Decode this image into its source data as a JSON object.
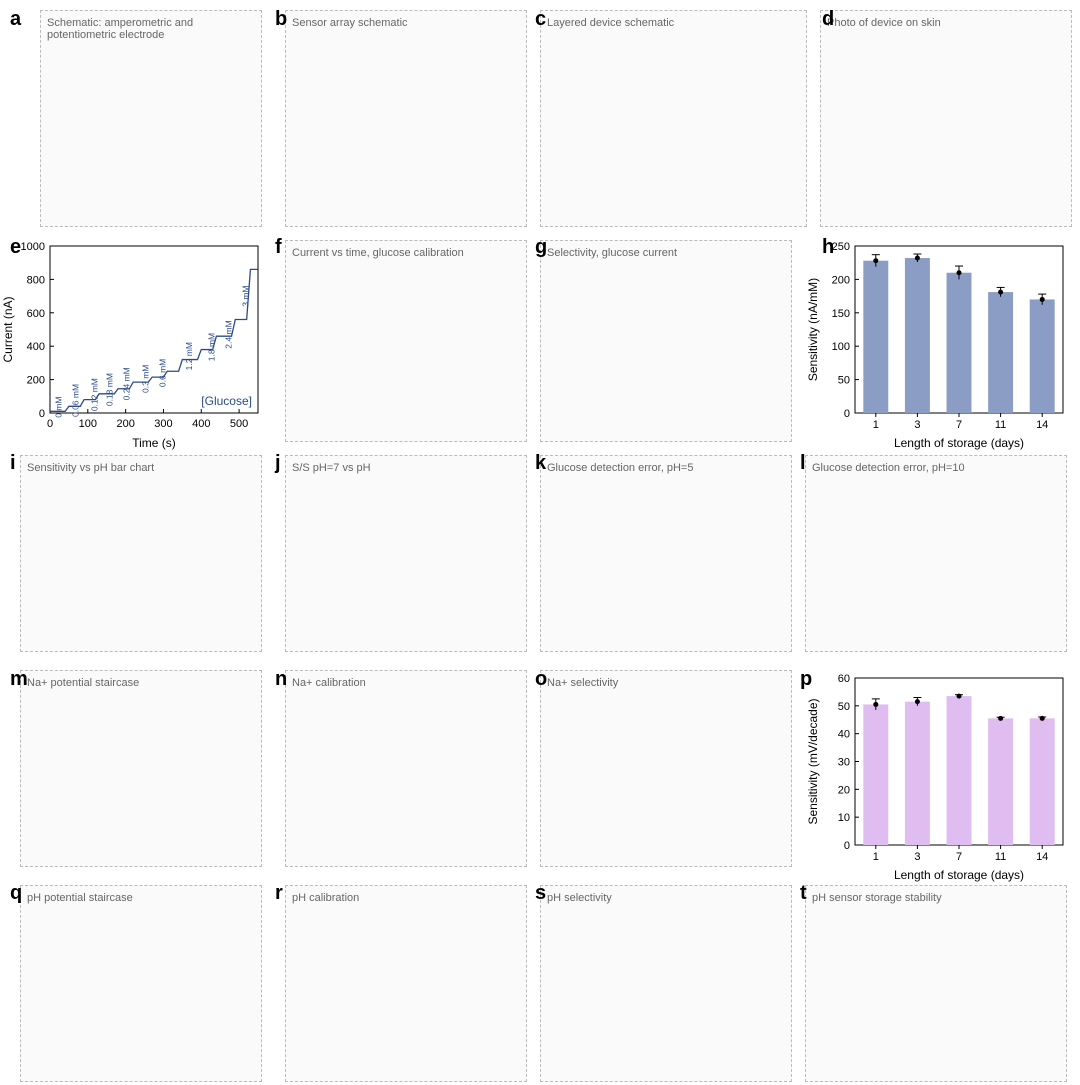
{
  "figure": {
    "panels": [
      {
        "label": "a",
        "placeholder": "Schematic: amperometric and potentiometric electrode"
      },
      {
        "label": "b",
        "placeholder": "Sensor array schematic"
      },
      {
        "label": "c",
        "placeholder": "Layered device schematic"
      },
      {
        "label": "d",
        "placeholder": "Photo of device on skin"
      },
      {
        "label": "e"
      },
      {
        "label": "f",
        "placeholder": "Current vs time, glucose calibration"
      },
      {
        "label": "g",
        "placeholder": "Selectivity, glucose current"
      },
      {
        "label": "h"
      },
      {
        "label": "i",
        "placeholder": "Sensitivity vs pH bar chart"
      },
      {
        "label": "j",
        "placeholder": "S/S pH=7 vs pH"
      },
      {
        "label": "k",
        "placeholder": "Glucose detection error, pH=5"
      },
      {
        "label": "l",
        "placeholder": "Glucose detection error, pH=10"
      },
      {
        "label": "m",
        "placeholder": "Na+ potential staircase"
      },
      {
        "label": "n",
        "placeholder": "Na+ calibration"
      },
      {
        "label": "o",
        "placeholder": "Na+ selectivity"
      },
      {
        "label": "p"
      },
      {
        "label": "q",
        "placeholder": "pH potential staircase"
      },
      {
        "label": "r",
        "placeholder": "pH calibration"
      },
      {
        "label": "s",
        "placeholder": "pH selectivity"
      },
      {
        "label": "t",
        "placeholder": "pH sensor storage stability"
      }
    ]
  },
  "chart_data": [
    {
      "id": "e",
      "type": "line",
      "title": "",
      "xlabel": "Time (s)",
      "ylabel": "Current (nA)",
      "xlim": [
        0,
        550
      ],
      "ylim": [
        0,
        1000
      ],
      "xticks": [
        0,
        100,
        200,
        300,
        400,
        500
      ],
      "yticks": [
        0,
        200,
        400,
        600,
        800,
        1000
      ],
      "legend_text": "[Glucose]",
      "series": [
        {
          "name": "glucose response",
          "x": [
            0,
            20,
            40,
            50,
            60,
            80,
            90,
            100,
            120,
            130,
            150,
            170,
            180,
            190,
            210,
            220,
            240,
            260,
            270,
            280,
            300,
            310,
            320,
            340,
            350,
            370,
            390,
            400,
            410,
            430,
            440,
            460,
            480,
            490,
            500,
            520,
            530,
            550
          ],
          "y": [
            10,
            10,
            10,
            40,
            40,
            40,
            80,
            80,
            80,
            115,
            115,
            115,
            145,
            145,
            145,
            185,
            185,
            185,
            215,
            215,
            215,
            250,
            250,
            250,
            320,
            320,
            320,
            380,
            380,
            380,
            460,
            460,
            460,
            560,
            560,
            560,
            860,
            860
          ]
        }
      ],
      "annotations": [
        {
          "text": "0 mM",
          "x": 30,
          "y": 35
        },
        {
          "text": "0.06 mM",
          "x": 75,
          "y": 75
        },
        {
          "text": "0.12 mM",
          "x": 125,
          "y": 110
        },
        {
          "text": "0.18 mM",
          "x": 165,
          "y": 140
        },
        {
          "text": "0.24 mM",
          "x": 210,
          "y": 175
        },
        {
          "text": "0.3 mM",
          "x": 260,
          "y": 205
        },
        {
          "text": "0.6 mM",
          "x": 305,
          "y": 240
        },
        {
          "text": "1.2 mM",
          "x": 375,
          "y": 340
        },
        {
          "text": "1.8 mM",
          "x": 435,
          "y": 395
        },
        {
          "text": "2.4 mM",
          "x": 480,
          "y": 470
        },
        {
          "text": "3 mM",
          "x": 525,
          "y": 700
        }
      ]
    },
    {
      "id": "h",
      "type": "bar",
      "xlabel": "Length of storage (days)",
      "ylabel": "Sensitivity (nA/mM)",
      "categories": [
        "1",
        "3",
        "7",
        "11",
        "14"
      ],
      "values": [
        228,
        232,
        210,
        181,
        170
      ],
      "errors": [
        9,
        6,
        10,
        7,
        8
      ],
      "ylim": [
        0,
        250
      ],
      "yticks": [
        0,
        50,
        100,
        150,
        200,
        250
      ],
      "color": "#8c9dc5"
    },
    {
      "id": "p",
      "type": "bar",
      "xlabel": "Length of storage (days)",
      "ylabel": "Sensitivity (mV/decade)",
      "categories": [
        "1",
        "3",
        "7",
        "11",
        "14"
      ],
      "values": [
        50.5,
        51.5,
        53.5,
        45.5,
        45.5
      ],
      "errors": [
        2.0,
        1.5,
        0.5,
        0.4,
        0.5
      ],
      "ylim": [
        0,
        60
      ],
      "yticks": [
        0,
        10,
        20,
        30,
        40,
        50,
        60
      ],
      "color": "#e0bdf0"
    }
  ]
}
